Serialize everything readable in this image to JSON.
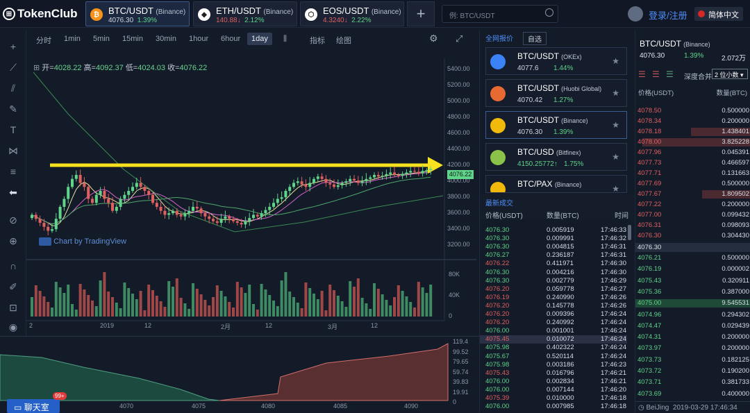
{
  "topbar": {
    "logo": "TokenClub",
    "tabs": [
      {
        "pair": "BTC/USDT",
        "exchange": "(Binance)",
        "price": "4076.30",
        "change": "1.39%",
        "dir": "up",
        "coin": "B",
        "color": "#f7931a"
      },
      {
        "pair": "ETH/USDT",
        "exchange": "(Binance)",
        "price": "140.88↓",
        "change": "2.12%",
        "dir": "up",
        "coin": "E",
        "color": "#ffffff"
      },
      {
        "pair": "EOS/USDT",
        "exchange": "(Binance)",
        "price": "4.3240↓",
        "change": "2.22%",
        "dir": "up",
        "coin": "e",
        "color": "#ffffff"
      }
    ],
    "search_placeholder": "例: BTC/USDT",
    "login": "登录/注册",
    "language": "简体中文"
  },
  "chart": {
    "timeframes": [
      "分时",
      "1min",
      "5min",
      "15min",
      "30min",
      "1hour",
      "6hour",
      "1day"
    ],
    "active_timeframe": "1day",
    "indicator_label": "指标",
    "draw_label": "绘图",
    "ohlc": {
      "open_label": "开=",
      "open": "4028.22",
      "high_label": "高=",
      "high": "4092.37",
      "low_label": "低=",
      "low": "4024.03",
      "close_label": "收=",
      "close": "4076.22"
    },
    "watermark": "Chart by TradingView",
    "price_ticks": [
      "5400.00",
      "5200.00",
      "5000.00",
      "4800.00",
      "4600.00",
      "4400.00",
      "4200.00",
      "4000.00",
      "3800.00",
      "3600.00",
      "3400.00",
      "3200.00"
    ],
    "last_price": "4076.22",
    "volume_ticks": [
      "80K",
      "40K",
      "0"
    ],
    "date_labels": [
      "2",
      "2019",
      "12",
      "2月",
      "12",
      "3月",
      "12"
    ]
  },
  "depth": {
    "x_labels": [
      "4070",
      "4075",
      "4080",
      "4085",
      "4090"
    ],
    "y_labels": [
      "119.4",
      "99.52",
      "79.65",
      "59.74",
      "39.83",
      "19.91",
      "0"
    ],
    "chat_label": "聊天室",
    "chat_badge": "99+"
  },
  "market": {
    "tab_all": "全网报价",
    "tab_fav": "自选",
    "cards": [
      {
        "pair": "BTC/USDT",
        "exchange": "(OKEx)",
        "price": "4077.6",
        "change": "1.44%",
        "icon_color": "#3b82f6"
      },
      {
        "pair": "BTC/USDT",
        "exchange": "(Huobi Global)",
        "price": "4070.42",
        "change": "1.27%",
        "icon_color": "#e86a33"
      },
      {
        "pair": "BTC/USDT",
        "exchange": "(Binance)",
        "price": "4076.30",
        "change": "1.39%",
        "icon_color": "#f0b90b"
      },
      {
        "pair": "BTC/USD",
        "exchange": "(Bitfinex)",
        "price": "4150.25772↑",
        "change": "1.75%",
        "icon_color": "#8bc34a"
      },
      {
        "pair": "BTC/PAX",
        "exchange": "(Binance)",
        "price": "",
        "change": "",
        "icon_color": "#f0b90b"
      }
    ]
  },
  "trades": {
    "title": "最新成交",
    "col_price": "价格(USDT)",
    "col_amount": "数量(BTC)",
    "col_time": "时间",
    "rows": [
      [
        "4076.30",
        "0.005919",
        "17:46:33",
        "g"
      ],
      [
        "4076.30",
        "0.009991",
        "17:46:32",
        "g"
      ],
      [
        "4076.30",
        "0.004815",
        "17:46:31",
        "g"
      ],
      [
        "4076.27",
        "0.236187",
        "17:46:31",
        "g"
      ],
      [
        "4076.22",
        "0.411971",
        "17:46:30",
        "r"
      ],
      [
        "4076.30",
        "0.004216",
        "17:46:30",
        "g"
      ],
      [
        "4076.30",
        "0.002779",
        "17:46:29",
        "g"
      ],
      [
        "4076.20",
        "0.059778",
        "17:46:27",
        "r"
      ],
      [
        "4076.19",
        "0.240990",
        "17:46:26",
        "r"
      ],
      [
        "4076.20",
        "0.145778",
        "17:46:26",
        "r"
      ],
      [
        "4076.20",
        "0.009396",
        "17:46:24",
        "r"
      ],
      [
        "4076.20",
        "0.240992",
        "17:46:24",
        "r"
      ],
      [
        "4076.00",
        "0.001001",
        "17:46:24",
        "g"
      ],
      [
        "4075.45",
        "0.010072",
        "17:46:24",
        "r"
      ],
      [
        "4075.98",
        "0.402322",
        "17:46:24",
        "g"
      ],
      [
        "4075.67",
        "0.520114",
        "17:46:24",
        "g"
      ],
      [
        "4075.98",
        "0.003186",
        "17:46:23",
        "g"
      ],
      [
        "4075.43",
        "0.016796",
        "17:46:21",
        "r"
      ],
      [
        "4076.00",
        "0.002834",
        "17:46:21",
        "g"
      ],
      [
        "4076.00",
        "0.007144",
        "17:46:20",
        "g"
      ],
      [
        "4075.39",
        "0.010000",
        "17:46:18",
        "r"
      ],
      [
        "4076.00",
        "0.007985",
        "17:46:18",
        "g"
      ]
    ]
  },
  "orderbook": {
    "pair": "BTC/USDT",
    "exchange": "(Binance)",
    "price": "4076.30",
    "change": "1.39%",
    "volume": "2.072万",
    "depth_merge_label": "深度合并",
    "decimals_label": "2 位小数",
    "col_price": "价格(USDT)",
    "col_amount": "数量(BTC)",
    "asks": [
      [
        "4078.50",
        "0.500000",
        0
      ],
      [
        "4078.34",
        "0.200000",
        0
      ],
      [
        "4078.18",
        "1.438401",
        0.55
      ],
      [
        "4078.00",
        "3.825228",
        1.0
      ],
      [
        "4077.96",
        "0.045391",
        0
      ],
      [
        "4077.73",
        "0.466597",
        0
      ],
      [
        "4077.71",
        "0.131663",
        0
      ],
      [
        "4077.69",
        "0.500000",
        0
      ],
      [
        "4077.67",
        "1.809502",
        0.45
      ],
      [
        "4077.22",
        "0.200000",
        0
      ],
      [
        "4077.00",
        "0.099432",
        0
      ],
      [
        "4076.31",
        "0.098093",
        0
      ],
      [
        "4076.30",
        "0.304430",
        0
      ]
    ],
    "mid_price": "4076.30",
    "bids": [
      [
        "4076.21",
        "0.500000",
        0
      ],
      [
        "4076.19",
        "0.000002",
        0
      ],
      [
        "4075.43",
        "0.320911",
        0
      ],
      [
        "4075.36",
        "0.387000",
        0
      ],
      [
        "4075.00",
        "9.545531",
        1.0
      ],
      [
        "4074.96",
        "0.294302",
        0
      ],
      [
        "4074.47",
        "0.029439",
        0
      ],
      [
        "4074.31",
        "0.200000",
        0
      ],
      [
        "4073.97",
        "0.200000",
        0
      ],
      [
        "4073.73",
        "0.182125",
        0
      ],
      [
        "4073.72",
        "0.190200",
        0
      ],
      [
        "4073.71",
        "0.381733",
        0
      ],
      [
        "4073.69",
        "0.400000",
        0
      ]
    ],
    "footer_city": "BeiJing",
    "footer_time": "2019-03-29  17:46:34"
  },
  "colors": {
    "up": "#5fd48a",
    "down": "#e0605f",
    "accent": "#4f8ff7",
    "arrow": "#f5e11d"
  }
}
